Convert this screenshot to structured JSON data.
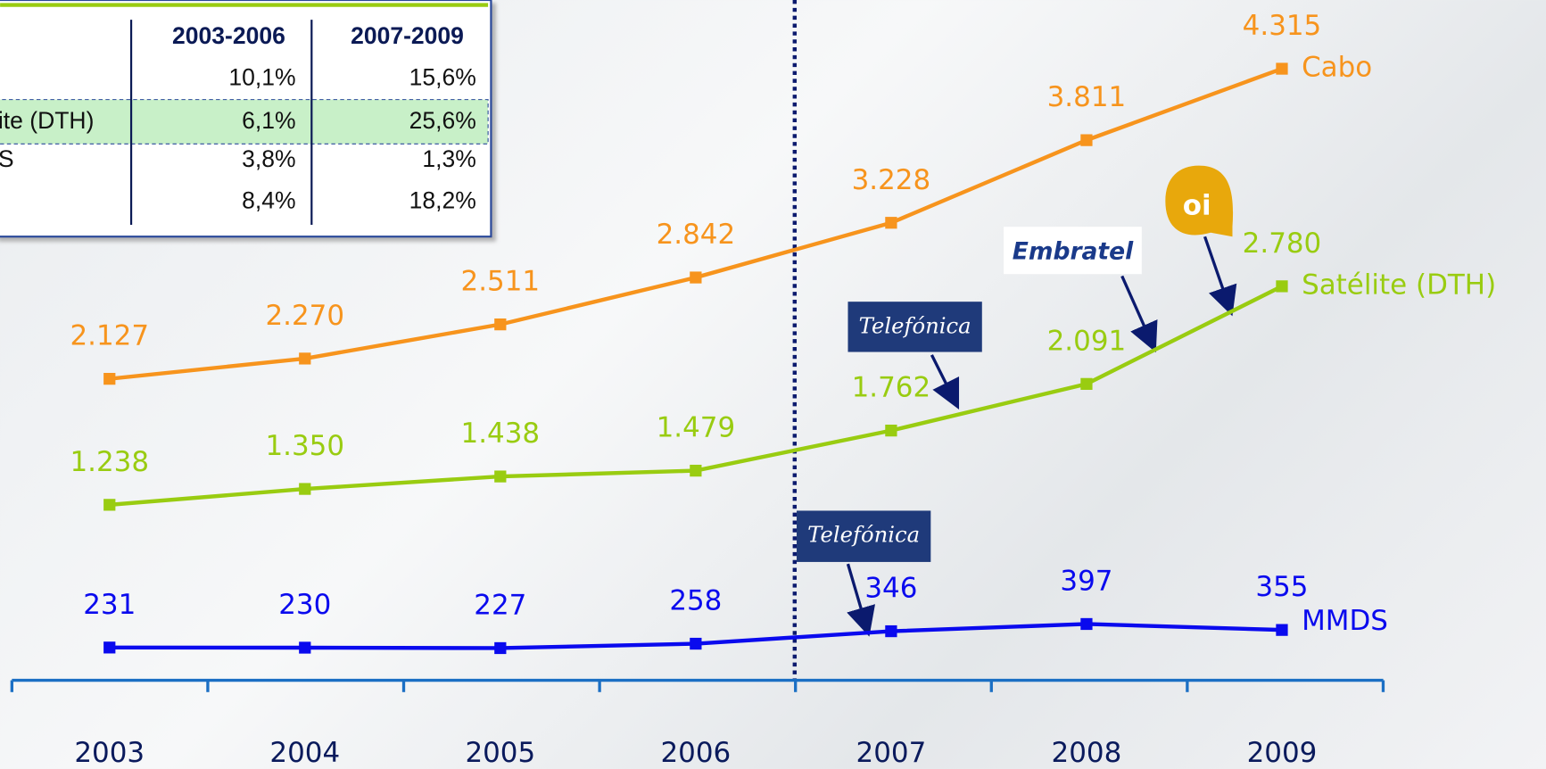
{
  "table": {
    "header": [
      "2003-2006",
      "2007-2009"
    ],
    "rows": [
      {
        "cells": [
          "10,1%",
          "15,6%"
        ]
      },
      {
        "label": "ite (DTH)",
        "cells": [
          "6,1%",
          "25,6%"
        ]
      },
      {
        "label": "S",
        "cells": [
          "3,8%",
          "1,3%"
        ]
      },
      {
        "cells": [
          "8,4%",
          "18,2%"
        ]
      }
    ]
  },
  "chart_data": {
    "type": "line",
    "categories": [
      "2003",
      "2004",
      "2005",
      "2006",
      "2007",
      "2008",
      "2009"
    ],
    "ylim": [
      0,
      4800
    ],
    "series": [
      {
        "name": "Cabo",
        "color": "#f7941d",
        "values": [
          2127,
          2270,
          2511,
          2842,
          3228,
          3811,
          4315
        ],
        "value_labels": [
          "2.127",
          "2.270",
          "2.511",
          "2.842",
          "3.228",
          "3.811",
          "4.315"
        ]
      },
      {
        "name": "Satélite (DTH)",
        "color": "#99cc11",
        "values": [
          1238,
          1350,
          1438,
          1479,
          1762,
          2091,
          2780
        ],
        "value_labels": [
          "1.238",
          "1.350",
          "1.438",
          "1.479",
          "1.762",
          "2.091",
          "2.780"
        ]
      },
      {
        "name": "MMDS",
        "color": "#0a0aee",
        "values": [
          231,
          230,
          227,
          258,
          346,
          397,
          355
        ]
      }
    ],
    "annotations": [
      "Telefónica",
      "Embratel",
      "oi",
      "Telefónica"
    ]
  }
}
